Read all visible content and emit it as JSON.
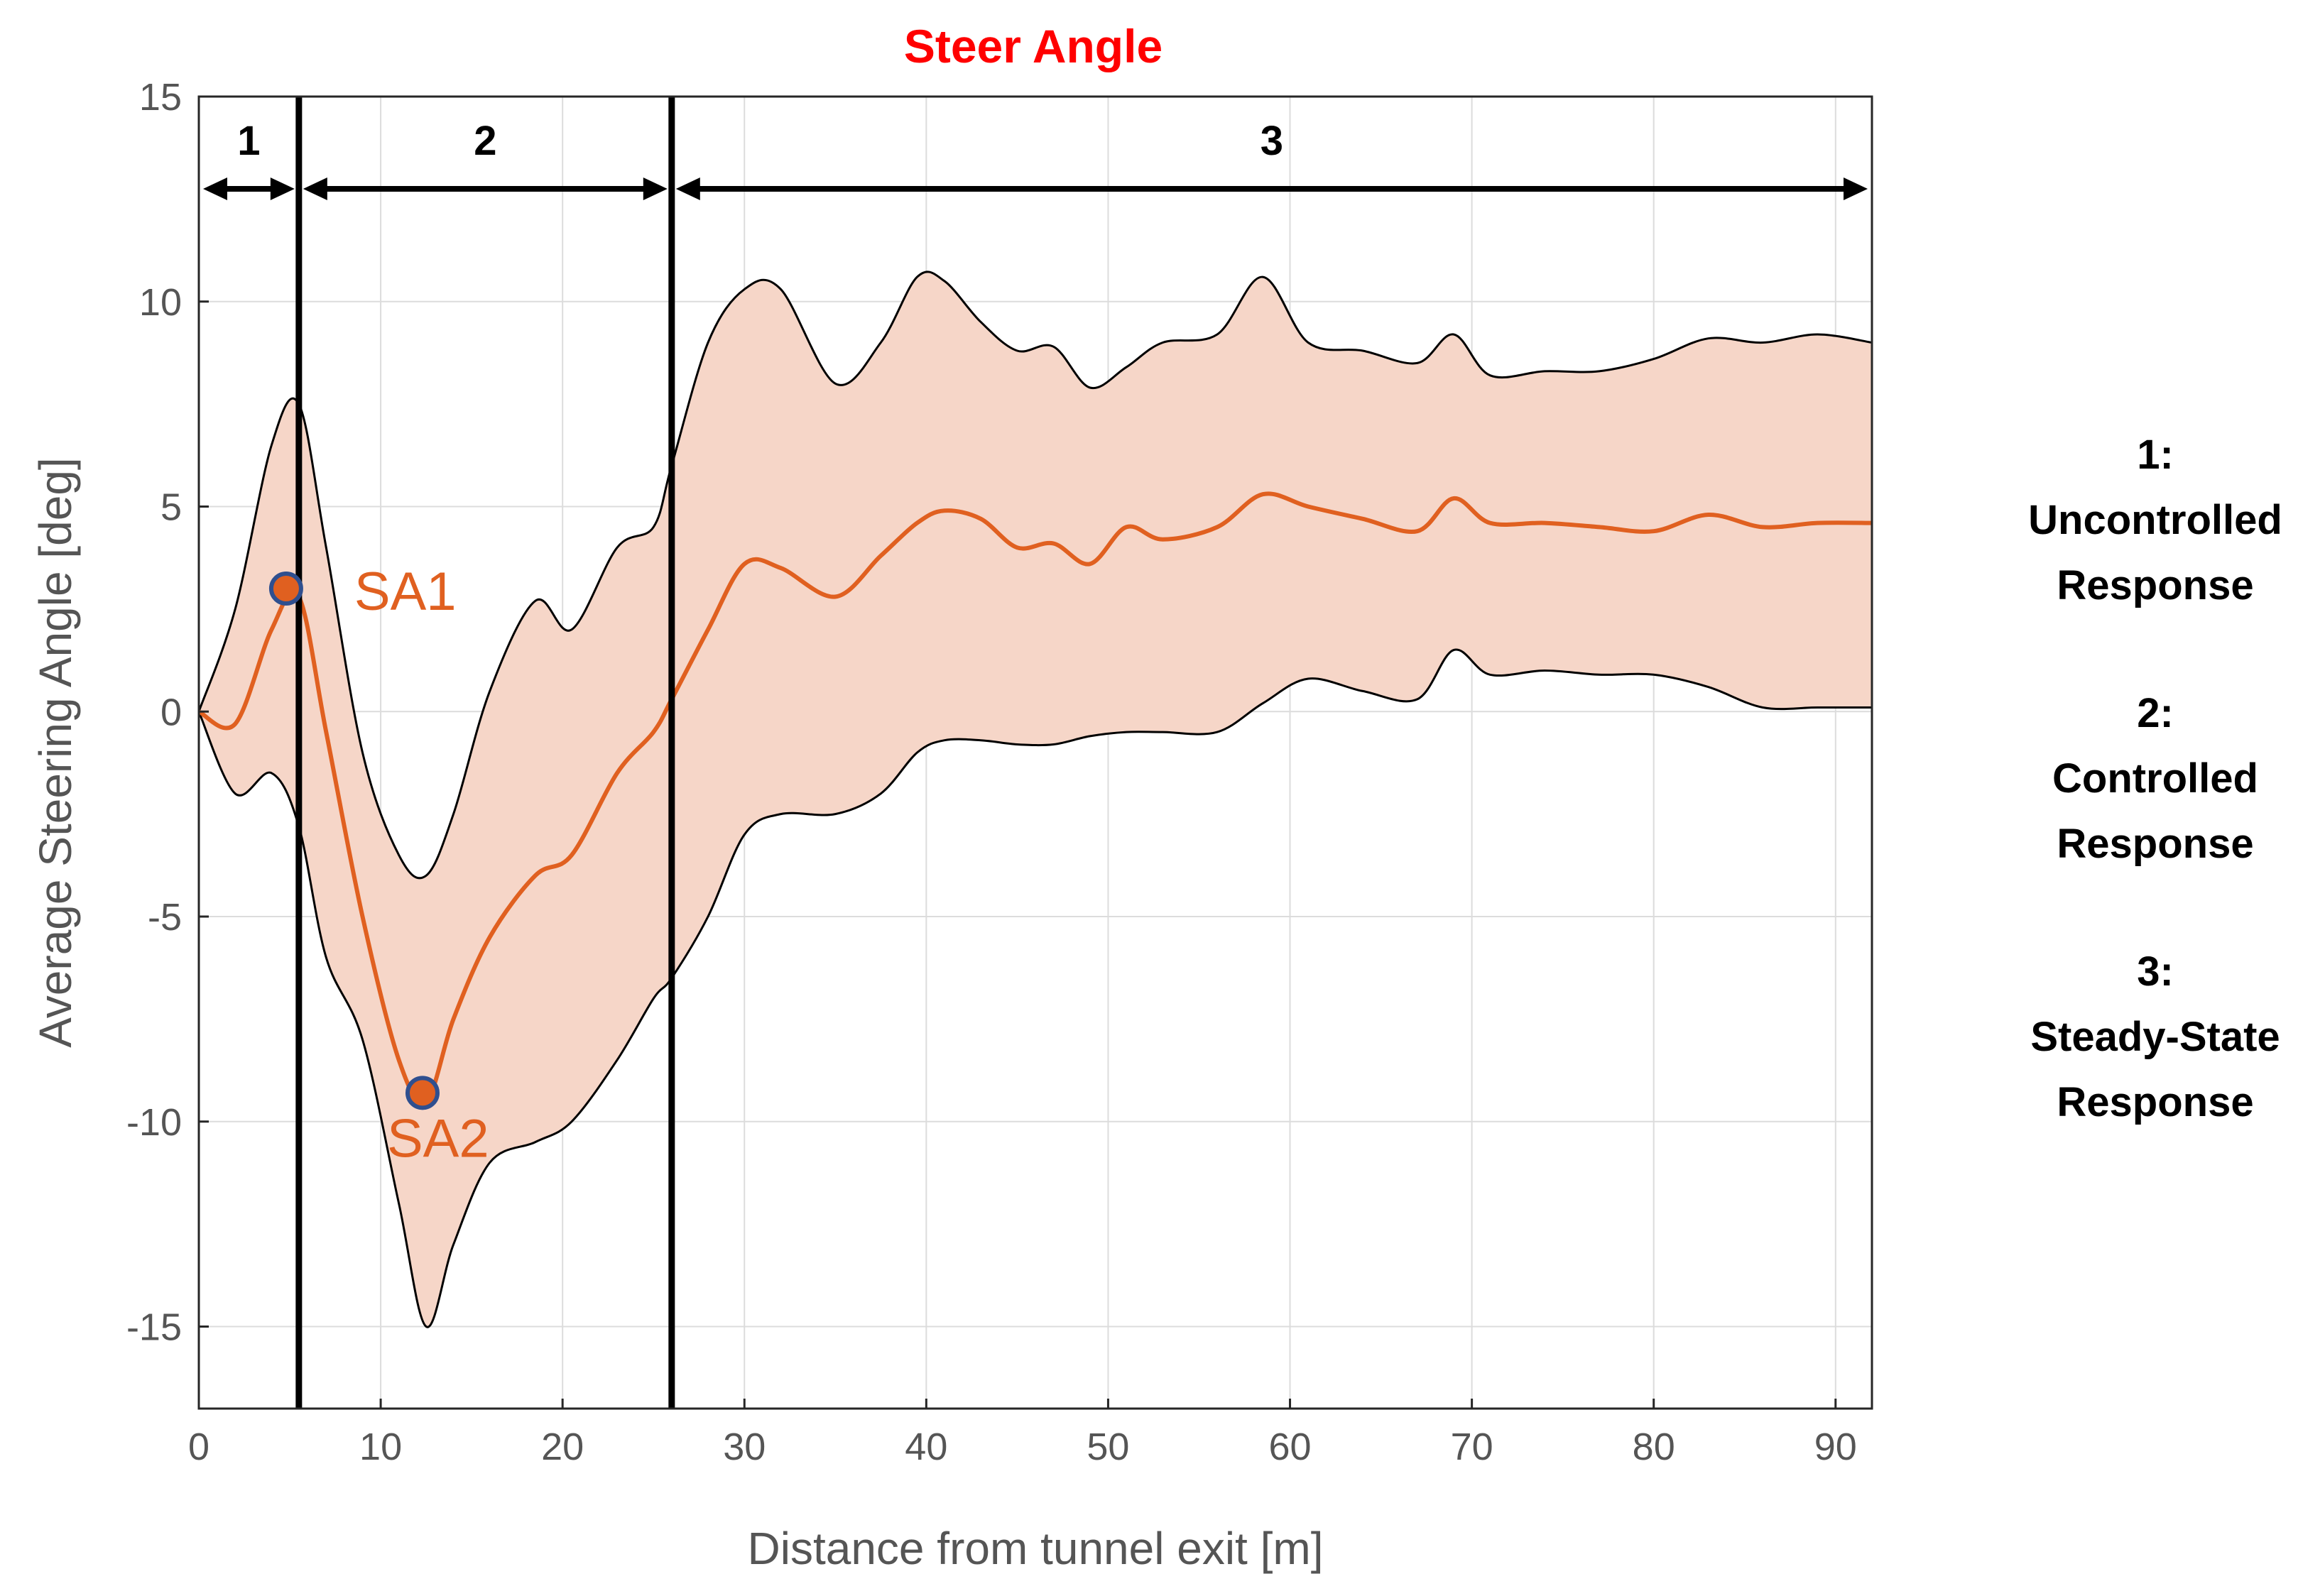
{
  "chart_data": {
    "type": "area",
    "title": "Steer Angle",
    "xlabel": "Distance from tunnel exit [m]",
    "ylabel": "Average Steering Angle [deg]",
    "xlim": [
      0,
      92
    ],
    "ylim": [
      -17,
      15
    ],
    "xticks": [
      0,
      10,
      20,
      30,
      40,
      50,
      60,
      70,
      80,
      90
    ],
    "yticks": [
      15,
      10,
      5,
      0,
      -5,
      -10,
      -15
    ],
    "grid": true,
    "colors": {
      "mean": "#e06020",
      "band_fill": "#f6d6c8",
      "band_edge": "#000000",
      "title": "#ff0000",
      "marker_edge": "#2f4f8f",
      "divider": "#000000"
    },
    "series": [
      {
        "name": "Upper bound",
        "x": [
          0,
          2,
          4,
          5.5,
          7,
          9,
          11,
          12.5,
          14,
          16,
          18.5,
          20.5,
          23,
          25,
          26,
          28,
          30,
          32,
          35,
          37.5,
          39.5,
          41,
          43,
          45,
          47,
          49,
          51,
          53,
          56,
          58.5,
          61,
          64,
          67,
          69,
          71,
          74,
          77,
          80,
          83,
          86,
          89,
          92
        ],
        "y": [
          0,
          2.5,
          6.5,
          7.5,
          4,
          -1,
          -3.5,
          -4,
          -2.5,
          0.5,
          2.7,
          2.0,
          4.0,
          4.5,
          6.0,
          9.0,
          10.3,
          10.3,
          8.0,
          9.0,
          10.6,
          10.5,
          9.5,
          8.8,
          8.9,
          7.9,
          8.4,
          9.0,
          9.2,
          10.6,
          9.0,
          8.8,
          8.5,
          9.2,
          8.2,
          8.3,
          8.3,
          8.6,
          9.1,
          9.0,
          9.2,
          9.0
        ]
      },
      {
        "name": "Mean",
        "x": [
          0,
          2,
          4,
          5.5,
          7,
          9,
          11,
          12.5,
          14,
          16,
          18.5,
          20.5,
          23,
          25,
          26,
          28,
          30,
          32,
          35,
          37.5,
          39.5,
          41,
          43,
          45,
          47,
          49,
          51,
          53,
          56,
          58.5,
          61,
          64,
          67,
          69,
          71,
          74,
          77,
          80,
          83,
          86,
          89,
          92
        ],
        "y": [
          0,
          -0.3,
          2.0,
          2.8,
          -0.5,
          -5.0,
          -8.5,
          -9.5,
          -7.5,
          -5.5,
          -4.0,
          -3.5,
          -1.5,
          -0.5,
          0.3,
          2.0,
          3.6,
          3.5,
          2.8,
          3.8,
          4.6,
          4.9,
          4.7,
          4.0,
          4.1,
          3.6,
          4.5,
          4.2,
          4.5,
          5.3,
          5.0,
          4.7,
          4.4,
          5.2,
          4.6,
          4.6,
          4.5,
          4.4,
          4.8,
          4.5,
          4.6,
          4.6
        ]
      },
      {
        "name": "Lower bound",
        "x": [
          0,
          2,
          4,
          5.5,
          7,
          9,
          11,
          12.5,
          14,
          16,
          18.5,
          20.5,
          23,
          25,
          26,
          28,
          30,
          32,
          35,
          37.5,
          39.5,
          41,
          43,
          45,
          47,
          49,
          51,
          53,
          56,
          58.5,
          61,
          64,
          67,
          69,
          71,
          74,
          77,
          80,
          83,
          86,
          89,
          92
        ],
        "y": [
          0,
          -2.0,
          -1.5,
          -2.8,
          -6.0,
          -8.0,
          -12.0,
          -15.0,
          -13.0,
          -11.0,
          -10.5,
          -10.0,
          -8.5,
          -7.0,
          -6.5,
          -5.0,
          -3.0,
          -2.5,
          -2.5,
          -2.0,
          -1.0,
          -0.7,
          -0.7,
          -0.8,
          -0.8,
          -0.6,
          -0.5,
          -0.5,
          -0.5,
          0.2,
          0.8,
          0.5,
          0.3,
          1.5,
          0.9,
          1.0,
          0.9,
          0.9,
          0.6,
          0.1,
          0.1,
          0.1
        ]
      }
    ],
    "phase_dividers": [
      5.5,
      26
    ],
    "phases": [
      {
        "label": "1",
        "start": 0,
        "end": 5.5
      },
      {
        "label": "2",
        "start": 5.5,
        "end": 26
      },
      {
        "label": "3",
        "start": 26,
        "end": 92
      }
    ],
    "points": [
      {
        "label": "SA1",
        "x": 4.8,
        "y": 3.0
      },
      {
        "label": "SA2",
        "x": 12.3,
        "y": -9.3
      }
    ]
  },
  "legend": [
    {
      "number": "1:",
      "line1": "Uncontrolled",
      "line2": "Response"
    },
    {
      "number": "2:",
      "line1": "Controlled",
      "line2": "Response"
    },
    {
      "number": "3:",
      "line1": "Steady-State",
      "line2": "Response"
    }
  ]
}
